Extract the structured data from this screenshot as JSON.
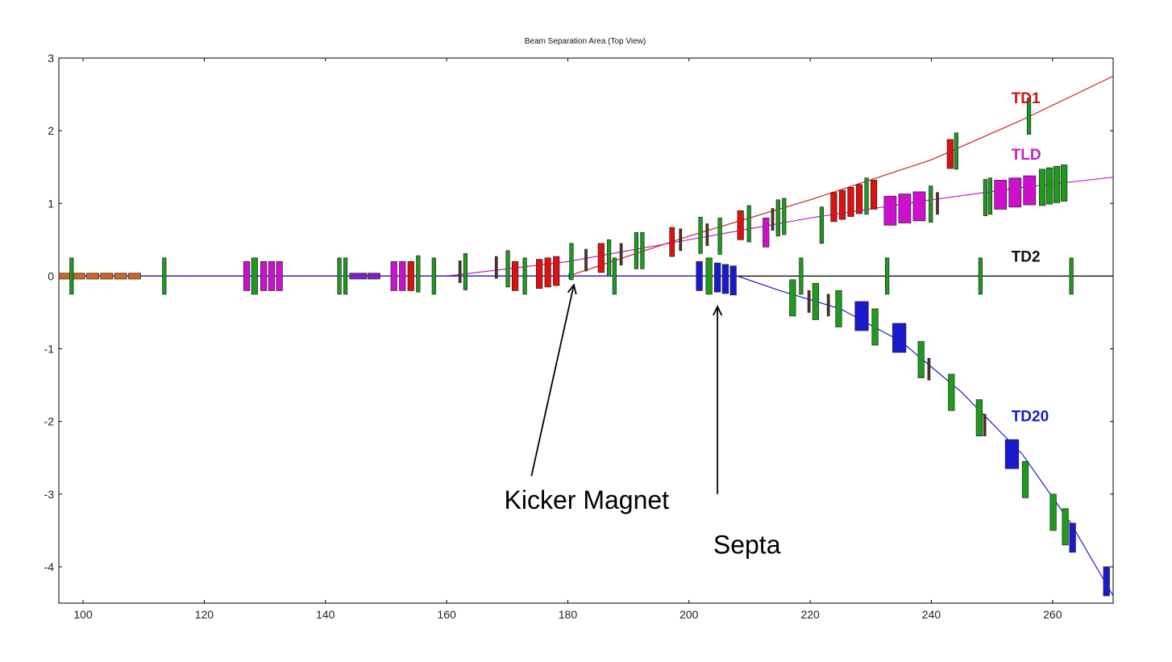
{
  "chart_data": {
    "type": "line",
    "title": "Beam Separation Area (Top View)",
    "xlabel": "",
    "ylabel": "",
    "xlim": [
      96,
      270
    ],
    "ylim": [
      -4.5,
      3
    ],
    "x_ticks": [
      100,
      120,
      140,
      160,
      180,
      200,
      220,
      240,
      260
    ],
    "x_tick_labels": [
      "100",
      "120",
      "140",
      "160",
      "180",
      "200",
      "220",
      "240",
      "260"
    ],
    "y_ticks": [
      3,
      2,
      1,
      0,
      -1,
      -2,
      -3,
      -4
    ],
    "y_tick_labels": [
      "3",
      "2",
      "1",
      "0",
      "-1",
      "-2",
      "-3",
      "-4"
    ],
    "grid": false,
    "series": [
      {
        "name": "TD1",
        "color": "#cc2222",
        "x": [
          180,
          200,
          220,
          240,
          255,
          270
        ],
        "y": [
          0,
          0.55,
          1.05,
          1.6,
          2.15,
          2.75
        ]
      },
      {
        "name": "TLD",
        "color": "#c020c0",
        "x": [
          160,
          180,
          200,
          220,
          240,
          255,
          270
        ],
        "y": [
          0,
          0.2,
          0.5,
          0.8,
          1.05,
          1.22,
          1.36
        ]
      },
      {
        "name": "TD2",
        "color": "#000000",
        "x": [
          96,
          270
        ],
        "y": [
          0,
          0
        ]
      },
      {
        "name": "TD20",
        "color": "#1a1acc",
        "x": [
          96,
          208,
          215,
          225,
          235,
          245,
          255,
          263,
          270
        ],
        "y": [
          0,
          0,
          -0.2,
          -0.45,
          -0.9,
          -1.6,
          -2.45,
          -3.4,
          -4.4
        ]
      }
    ],
    "elements": [
      {
        "color": "#cc6622",
        "x0": 96,
        "x1": 98,
        "y": 0,
        "h": 0.08
      },
      {
        "color": "#cc6622",
        "x0": 98.3,
        "x1": 100.3,
        "y": 0,
        "h": 0.08
      },
      {
        "color": "#cc6622",
        "x0": 100.6,
        "x1": 102.6,
        "y": 0,
        "h": 0.08
      },
      {
        "color": "#cc6622",
        "x0": 102.9,
        "x1": 104.9,
        "y": 0,
        "h": 0.08
      },
      {
        "color": "#cc6622",
        "x0": 105.2,
        "x1": 107.2,
        "y": 0,
        "h": 0.08
      },
      {
        "color": "#cc6622",
        "x0": 107.5,
        "x1": 109.5,
        "y": 0,
        "h": 0.08
      },
      {
        "color": "#1e9b1e",
        "x0": 97.8,
        "x1": 98.4,
        "y": 0,
        "h": 0.5
      },
      {
        "color": "#1e9b1e",
        "x0": 113.1,
        "x1": 113.7,
        "y": 0,
        "h": 0.5
      },
      {
        "color": "#cc10cc",
        "x0": 126.5,
        "x1": 127.5,
        "y": 0,
        "h": 0.4
      },
      {
        "color": "#1e9b1e",
        "x0": 127.8,
        "x1": 128.8,
        "y": 0,
        "h": 0.5
      },
      {
        "color": "#cc10cc",
        "x0": 129.3,
        "x1": 130.3,
        "y": 0,
        "h": 0.4
      },
      {
        "color": "#cc10cc",
        "x0": 130.6,
        "x1": 131.6,
        "y": 0,
        "h": 0.4
      },
      {
        "color": "#cc10cc",
        "x0": 131.9,
        "x1": 132.9,
        "y": 0,
        "h": 0.4
      },
      {
        "color": "#1e9b1e",
        "x0": 142.0,
        "x1": 142.6,
        "y": 0,
        "h": 0.5
      },
      {
        "color": "#1e9b1e",
        "x0": 143.0,
        "x1": 143.6,
        "y": 0,
        "h": 0.5
      },
      {
        "color": "#8020c0",
        "x0": 144.0,
        "x1": 146.8,
        "y": 0,
        "h": 0.08
      },
      {
        "color": "#8020c0",
        "x0": 147.0,
        "x1": 149.0,
        "y": 0,
        "h": 0.08
      },
      {
        "color": "#cc10cc",
        "x0": 150.8,
        "x1": 151.8,
        "y": 0,
        "h": 0.4
      },
      {
        "color": "#cc10cc",
        "x0": 152.2,
        "x1": 153.2,
        "y": 0,
        "h": 0.4
      },
      {
        "color": "#dd1111",
        "x0": 153.6,
        "x1": 154.6,
        "y": 0,
        "h": 0.4
      },
      {
        "color": "#1e9b1e",
        "x0": 155.0,
        "x1": 155.6,
        "y": 0.03,
        "h": 0.5
      },
      {
        "color": "#1e9b1e",
        "x0": 157.6,
        "x1": 158.2,
        "y": 0,
        "h": 0.5
      },
      {
        "color": "#553322",
        "x0": 162.0,
        "x1": 162.3,
        "y": 0.06,
        "h": 0.3
      },
      {
        "color": "#1e9b1e",
        "x0": 162.8,
        "x1": 163.4,
        "y": 0.06,
        "h": 0.5
      },
      {
        "color": "#553322",
        "x0": 168.0,
        "x1": 168.3,
        "y": 0.12,
        "h": 0.3
      },
      {
        "color": "#1e9b1e",
        "x0": 169.8,
        "x1": 170.4,
        "y": 0.1,
        "h": 0.5
      },
      {
        "color": "#dd1111",
        "x0": 170.8,
        "x1": 171.8,
        "y": 0.0,
        "h": 0.4
      },
      {
        "color": "#1e9b1e",
        "x0": 172.6,
        "x1": 173.2,
        "y": 0.0,
        "h": 0.5
      },
      {
        "color": "#dd1111",
        "x0": 174.8,
        "x1": 175.8,
        "y": 0.03,
        "h": 0.4
      },
      {
        "color": "#dd1111",
        "x0": 176.2,
        "x1": 177.2,
        "y": 0.05,
        "h": 0.4
      },
      {
        "color": "#dd1111",
        "x0": 177.6,
        "x1": 178.6,
        "y": 0.07,
        "h": 0.4
      },
      {
        "color": "#1a1acc",
        "x0": 180.2,
        "x1": 180.8,
        "y": 0.0,
        "h": 0.08
      },
      {
        "color": "#1e9b1e",
        "x0": 180.3,
        "x1": 180.9,
        "y": 0.2,
        "h": 0.5
      },
      {
        "color": "#553322",
        "x0": 182.8,
        "x1": 183.1,
        "y": 0.22,
        "h": 0.3
      },
      {
        "color": "#dd1111",
        "x0": 185.0,
        "x1": 186.0,
        "y": 0.25,
        "h": 0.4
      },
      {
        "color": "#1e9b1e",
        "x0": 186.5,
        "x1": 187.1,
        "y": 0.25,
        "h": 0.5
      },
      {
        "color": "#1e9b1e",
        "x0": 187.4,
        "x1": 188.0,
        "y": 0.0,
        "h": 0.5
      },
      {
        "color": "#553322",
        "x0": 188.6,
        "x1": 188.9,
        "y": 0.3,
        "h": 0.3
      },
      {
        "color": "#1e9b1e",
        "x0": 191.0,
        "x1": 191.6,
        "y": 0.35,
        "h": 0.5
      },
      {
        "color": "#1e9b1e",
        "x0": 192.0,
        "x1": 192.6,
        "y": 0.35,
        "h": 0.5
      },
      {
        "color": "#dd1111",
        "x0": 196.8,
        "x1": 197.6,
        "y": 0.47,
        "h": 0.4
      },
      {
        "color": "#553322",
        "x0": 198.4,
        "x1": 198.7,
        "y": 0.5,
        "h": 0.3
      },
      {
        "color": "#1e9b1e",
        "x0": 201.6,
        "x1": 202.2,
        "y": 0.56,
        "h": 0.5
      },
      {
        "color": "#553322",
        "x0": 202.8,
        "x1": 203.1,
        "y": 0.57,
        "h": 0.3
      },
      {
        "color": "#1e9b1e",
        "x0": 204.8,
        "x1": 205.4,
        "y": 0.55,
        "h": 0.5
      },
      {
        "color": "#1a1acc",
        "x0": 201.2,
        "x1": 202.2,
        "y": 0,
        "h": 0.4
      },
      {
        "color": "#1e9b1e",
        "x0": 202.8,
        "x1": 203.8,
        "y": 0,
        "h": 0.5
      },
      {
        "color": "#1a1acc",
        "x0": 204.2,
        "x1": 205.2,
        "y": -0.02,
        "h": 0.4
      },
      {
        "color": "#1a1acc",
        "x0": 205.5,
        "x1": 206.5,
        "y": -0.04,
        "h": 0.4
      },
      {
        "color": "#1a1acc",
        "x0": 206.8,
        "x1": 207.8,
        "y": -0.06,
        "h": 0.4
      },
      {
        "color": "#dd1111",
        "x0": 208.0,
        "x1": 209.0,
        "y": 0.7,
        "h": 0.4
      },
      {
        "color": "#1e9b1e",
        "x0": 209.6,
        "x1": 210.2,
        "y": 0.72,
        "h": 0.5
      },
      {
        "color": "#cc10cc",
        "x0": 212.2,
        "x1": 213.2,
        "y": 0.6,
        "h": 0.4
      },
      {
        "color": "#553322",
        "x0": 213.6,
        "x1": 213.9,
        "y": 0.78,
        "h": 0.3
      },
      {
        "color": "#1e9b1e",
        "x0": 214.4,
        "x1": 215.0,
        "y": 0.8,
        "h": 0.5
      },
      {
        "color": "#1e9b1e",
        "x0": 215.4,
        "x1": 216.0,
        "y": 0.82,
        "h": 0.5
      },
      {
        "color": "#1e9b1e",
        "x0": 216.6,
        "x1": 217.6,
        "y": -0.3,
        "h": 0.5
      },
      {
        "color": "#1e9b1e",
        "x0": 218.2,
        "x1": 218.8,
        "y": 0.0,
        "h": 0.5
      },
      {
        "color": "#553322",
        "x0": 219.6,
        "x1": 219.9,
        "y": -0.35,
        "h": 0.3
      },
      {
        "color": "#1e9b1e",
        "x0": 220.4,
        "x1": 221.4,
        "y": -0.35,
        "h": 0.5
      },
      {
        "color": "#553322",
        "x0": 222.8,
        "x1": 223.1,
        "y": -0.4,
        "h": 0.3
      },
      {
        "color": "#1e9b1e",
        "x0": 224.2,
        "x1": 225.2,
        "y": -0.45,
        "h": 0.5
      },
      {
        "color": "#1e9b1e",
        "x0": 221.6,
        "x1": 222.2,
        "y": 0.7,
        "h": 0.5
      },
      {
        "color": "#dd1111",
        "x0": 223.4,
        "x1": 224.4,
        "y": 0.95,
        "h": 0.4
      },
      {
        "color": "#dd1111",
        "x0": 224.8,
        "x1": 225.8,
        "y": 0.98,
        "h": 0.4
      },
      {
        "color": "#dd1111",
        "x0": 226.2,
        "x1": 227.2,
        "y": 1.02,
        "h": 0.4
      },
      {
        "color": "#dd1111",
        "x0": 227.6,
        "x1": 228.6,
        "y": 1.06,
        "h": 0.4
      },
      {
        "color": "#1e9b1e",
        "x0": 229.0,
        "x1": 229.6,
        "y": 1.1,
        "h": 0.5
      },
      {
        "color": "#dd1111",
        "x0": 230.0,
        "x1": 231.0,
        "y": 1.12,
        "h": 0.4
      },
      {
        "color": "#1a1acc",
        "x0": 227.4,
        "x1": 229.6,
        "y": -0.55,
        "h": 0.4
      },
      {
        "color": "#1e9b1e",
        "x0": 230.2,
        "x1": 231.2,
        "y": -0.7,
        "h": 0.5
      },
      {
        "color": "#1e9b1e",
        "x0": 232.4,
        "x1": 233.0,
        "y": 0,
        "h": 0.5
      },
      {
        "color": "#cc10cc",
        "x0": 232.2,
        "x1": 234.2,
        "y": 0.9,
        "h": 0.4
      },
      {
        "color": "#1a1acc",
        "x0": 233.6,
        "x1": 235.8,
        "y": -0.85,
        "h": 0.4
      },
      {
        "color": "#cc10cc",
        "x0": 234.6,
        "x1": 236.6,
        "y": 0.93,
        "h": 0.4
      },
      {
        "color": "#cc10cc",
        "x0": 237.0,
        "x1": 239.0,
        "y": 0.96,
        "h": 0.4
      },
      {
        "color": "#1e9b1e",
        "x0": 237.8,
        "x1": 238.8,
        "y": -1.15,
        "h": 0.5
      },
      {
        "color": "#1e9b1e",
        "x0": 239.6,
        "x1": 240.2,
        "y": 0.99,
        "h": 0.5
      },
      {
        "color": "#553322",
        "x0": 239.4,
        "x1": 239.7,
        "y": -1.28,
        "h": 0.3
      },
      {
        "color": "#553322",
        "x0": 240.8,
        "x1": 241.1,
        "y": 1.0,
        "h": 0.3
      },
      {
        "color": "#dd1111",
        "x0": 242.6,
        "x1": 243.6,
        "y": 1.68,
        "h": 0.4
      },
      {
        "color": "#1e9b1e",
        "x0": 243.8,
        "x1": 244.4,
        "y": 1.72,
        "h": 0.5
      },
      {
        "color": "#1e9b1e",
        "x0": 242.8,
        "x1": 243.8,
        "y": -1.6,
        "h": 0.5
      },
      {
        "color": "#1e9b1e",
        "x0": 247.4,
        "x1": 248.4,
        "y": -1.95,
        "h": 0.5
      },
      {
        "color": "#553322",
        "x0": 248.6,
        "x1": 248.9,
        "y": -2.05,
        "h": 0.3
      },
      {
        "color": "#1e9b1e",
        "x0": 247.8,
        "x1": 248.4,
        "y": 0,
        "h": 0.5
      },
      {
        "color": "#1e9b1e",
        "x0": 248.6,
        "x1": 249.2,
        "y": 1.08,
        "h": 0.5
      },
      {
        "color": "#1e9b1e",
        "x0": 249.4,
        "x1": 250.0,
        "y": 1.1,
        "h": 0.5
      },
      {
        "color": "#cc10cc",
        "x0": 250.4,
        "x1": 252.4,
        "y": 1.12,
        "h": 0.4
      },
      {
        "color": "#cc10cc",
        "x0": 252.8,
        "x1": 254.8,
        "y": 1.15,
        "h": 0.4
      },
      {
        "color": "#1a1acc",
        "x0": 252.2,
        "x1": 254.4,
        "y": -2.45,
        "h": 0.4
      },
      {
        "color": "#cc10cc",
        "x0": 255.2,
        "x1": 257.2,
        "y": 1.18,
        "h": 0.4
      },
      {
        "color": "#1e9b1e",
        "x0": 255.0,
        "x1": 256.0,
        "y": -2.8,
        "h": 0.5
      },
      {
        "color": "#1e9b1e",
        "x0": 255.8,
        "x1": 256.4,
        "y": 2.2,
        "h": 0.5
      },
      {
        "color": "#1e9b1e",
        "x0": 257.8,
        "x1": 258.8,
        "y": 1.22,
        "h": 0.5
      },
      {
        "color": "#1e9b1e",
        "x0": 259.0,
        "x1": 260.0,
        "y": 1.24,
        "h": 0.5
      },
      {
        "color": "#1e9b1e",
        "x0": 260.2,
        "x1": 261.2,
        "y": 1.26,
        "h": 0.5
      },
      {
        "color": "#1e9b1e",
        "x0": 261.4,
        "x1": 262.4,
        "y": 1.28,
        "h": 0.5
      },
      {
        "color": "#1e9b1e",
        "x0": 262.8,
        "x1": 263.4,
        "y": 0,
        "h": 0.5
      },
      {
        "color": "#1e9b1e",
        "x0": 259.6,
        "x1": 260.6,
        "y": -3.25,
        "h": 0.5
      },
      {
        "color": "#1e9b1e",
        "x0": 261.6,
        "x1": 262.6,
        "y": -3.45,
        "h": 0.5
      },
      {
        "color": "#1a1acc",
        "x0": 262.8,
        "x1": 263.8,
        "y": -3.6,
        "h": 0.4
      },
      {
        "color": "#1a1acc",
        "x0": 268.4,
        "x1": 269.4,
        "y": -4.2,
        "h": 0.4
      }
    ],
    "beam_labels": [
      {
        "text": "TD1",
        "color": "#cc1111",
        "x": 253.2,
        "y": 2.38
      },
      {
        "text": "TLD",
        "color": "#c020c0",
        "x": 253.2,
        "y": 1.6
      },
      {
        "text": "TD2",
        "color": "#111111",
        "x": 253.2,
        "y": 0.2
      },
      {
        "text": "TD20",
        "color": "#1a1acc",
        "x": 253.2,
        "y": -2.0
      }
    ],
    "annotations": [
      {
        "text": "Kicker Magnet",
        "text_x": 169.5,
        "text_y": -3.2,
        "arrow_from": [
          174.0,
          -2.75
        ],
        "arrow_to": [
          181.0,
          -0.12
        ]
      },
      {
        "text": "Septa",
        "text_x": 204.0,
        "text_y": -3.82,
        "arrow_from": [
          204.7,
          -3.0
        ],
        "arrow_to": [
          204.7,
          -0.42
        ]
      }
    ]
  }
}
